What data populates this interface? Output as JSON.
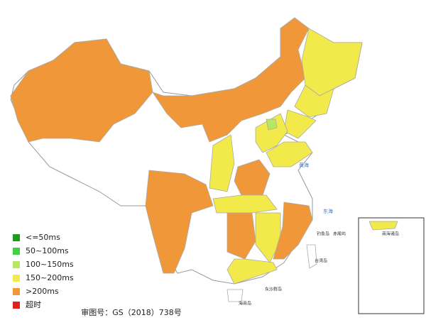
{
  "legend": [
    {
      "label": "<=50ms",
      "color": "#1e9a1e"
    },
    {
      "label": "50~100ms",
      "color": "#3fd13f"
    },
    {
      "label": "100~150ms",
      "color": "#b8e860"
    },
    {
      "label": "150~200ms",
      "color": "#f2e94a"
    },
    {
      "label": ">200ms",
      "color": "#f0973a"
    },
    {
      "label": "超时",
      "color": "#e0221a"
    }
  ],
  "map_labels": [
    "黄海",
    "东海",
    "钓鱼岛",
    "赤尾屿",
    "台湾岛",
    "东沙群岛",
    "海南岛",
    "南海诸岛"
  ],
  "approval": "审图号：GS（2018）738号"
}
